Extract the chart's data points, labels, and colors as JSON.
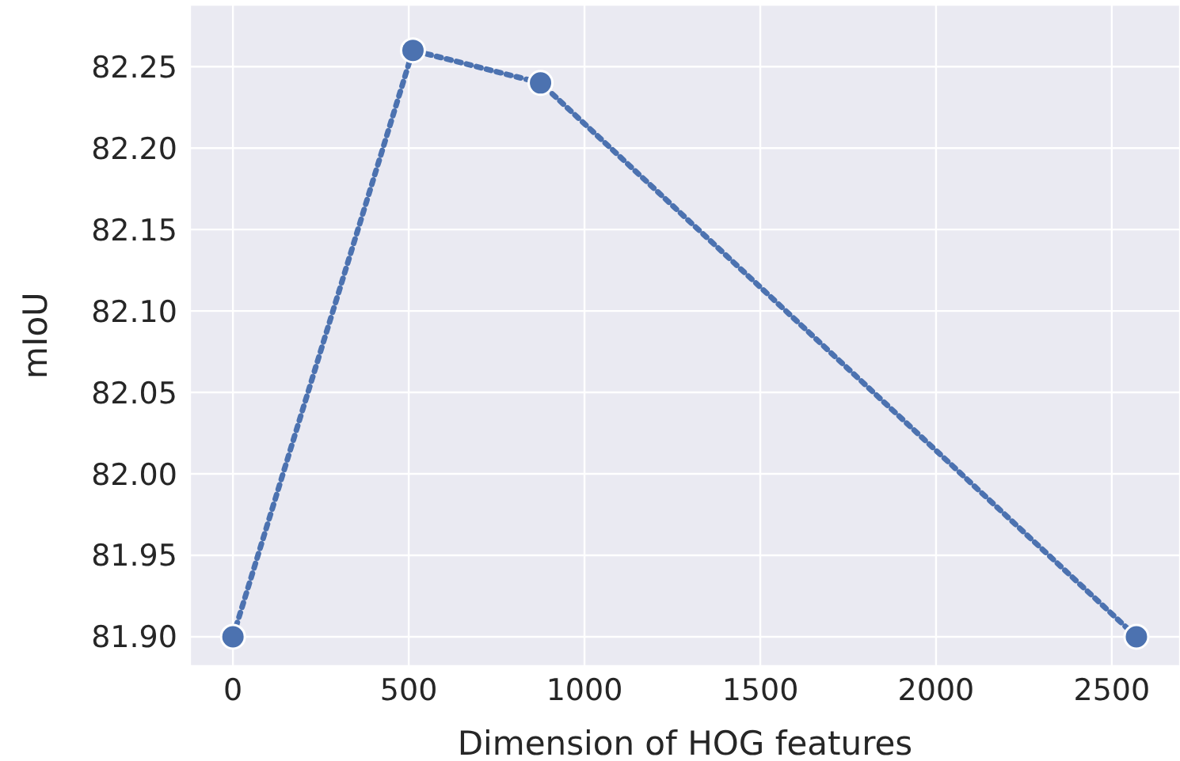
{
  "chart_data": {
    "type": "line",
    "xlabel": "Dimension of HOG features",
    "ylabel": "mIoU",
    "x": [
      0,
      512,
      875,
      2570
    ],
    "series": [
      {
        "color": "#4c72b0",
        "values": [
          81.9,
          82.26,
          82.24,
          81.9
        ]
      }
    ],
    "xlim": [
      -122,
      2694
    ],
    "xticks": [
      0,
      500,
      1000,
      1500,
      2000,
      2500
    ],
    "ylim": [
      81.882,
      82.288
    ],
    "yticks": [
      {
        "value": 81.9,
        "label": "81.90"
      },
      81.95,
      {
        "value": 82,
        "label": "82.00"
      },
      82.05,
      {
        "value": 82.1,
        "label": "82.10"
      },
      82.15,
      {
        "value": 82.2,
        "label": "82.20"
      },
      82.25
    ],
    "grid": true,
    "marker": "circle",
    "line_style": "dotted"
  }
}
